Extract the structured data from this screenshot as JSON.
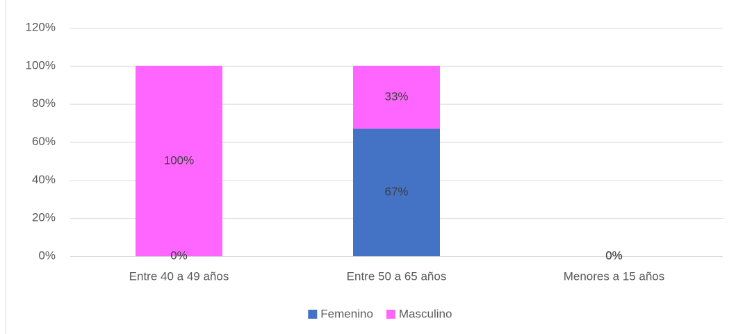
{
  "chart_data": {
    "type": "stacked_bar",
    "categories": [
      "Entre 40 a 49 años",
      "Entre 50 a 65 años",
      "Menores a 15 años"
    ],
    "series": [
      {
        "name": "Femenino",
        "color": "#4472c4",
        "values": [
          0,
          67,
          0
        ],
        "value_labels": [
          "0%",
          "67%",
          "0%"
        ]
      },
      {
        "name": "Masculino",
        "color": "#ff66ff",
        "values": [
          100,
          33,
          0
        ],
        "value_labels": [
          "100%",
          "33%",
          "0%"
        ]
      }
    ],
    "ylim": [
      0,
      120
    ],
    "yticks": [
      {
        "value": 0,
        "label": "0%"
      },
      {
        "value": 20,
        "label": "20%"
      },
      {
        "value": 40,
        "label": "40%"
      },
      {
        "value": 60,
        "label": "60%"
      },
      {
        "value": 80,
        "label": "80%"
      },
      {
        "value": 100,
        "label": "100%"
      },
      {
        "value": 120,
        "label": "120%"
      }
    ],
    "grid": true,
    "legend": "bottom"
  }
}
